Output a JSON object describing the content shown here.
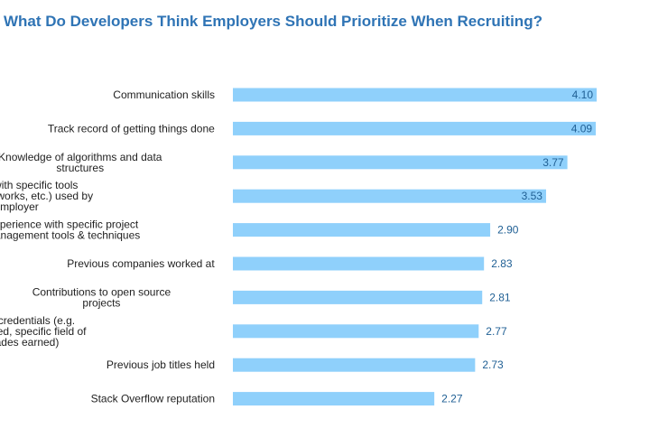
{
  "chart_data": {
    "type": "bar",
    "orientation": "horizontal",
    "title": "What Do Developers Think Employers Should Prioritize When Recruiting?",
    "categories": [
      "Communication skills",
      "Track record of getting things done",
      "Knowledge of algorithms and data structures",
      "Experience with specific tools (libraries, frameworks, etc.) used by the employer",
      "Experience with specific project management tools & techniques",
      "Previous companies worked at",
      "Contributions to open source projects",
      "Educational credentials (e.g. schools attended, specific field of study, grades earned)",
      "Previous job titles held",
      "Stack Overflow reputation"
    ],
    "category_lines": [
      [
        "Communication skills"
      ],
      [
        "Track record of getting things done"
      ],
      [
        "Knowledge of algorithms and data",
        "structures"
      ],
      [
        "Experience with specific tools",
        "(libraries, frameworks, etc.) used by",
        "the employer"
      ],
      [
        "Experience with specific project",
        "management tools & techniques"
      ],
      [
        "Previous companies worked at"
      ],
      [
        "Contributions to open source",
        "projects"
      ],
      [
        "Educational credentials (e.g.",
        "schools attended, specific field of",
        "study, grades earned)"
      ],
      [
        "Previous job titles held"
      ],
      [
        "Stack Overflow reputation"
      ]
    ],
    "values": [
      4.1,
      4.09,
      3.77,
      3.53,
      2.9,
      2.83,
      2.81,
      2.77,
      2.73,
      2.27
    ],
    "value_labels": [
      "4.10",
      "4.09",
      "3.77",
      "3.53",
      "2.90",
      "2.83",
      "2.81",
      "2.77",
      "2.73",
      "2.27"
    ],
    "xlabel": "",
    "ylabel": "",
    "grid": false,
    "legend": "none",
    "colors": {
      "bar": "#8fd0fb",
      "title": "#2f74b5",
      "value_label": "#1f5f94",
      "category_label": "#222222"
    }
  }
}
